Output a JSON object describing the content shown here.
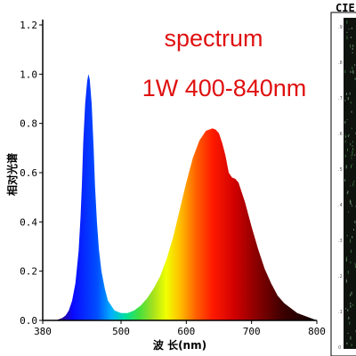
{
  "chart_data": {
    "type": "area",
    "title": "spectrum",
    "subtitle": "1W 400-840nm",
    "xlabel": "波 长(nm)",
    "ylabel": "相对光谱",
    "xlim": [
      380,
      800
    ],
    "ylim": [
      0,
      1.2
    ],
    "x_ticks": [
      "380",
      "500",
      "600",
      "700",
      "800"
    ],
    "y_ticks": [
      "0.0",
      "0.2",
      "0.4",
      "0.6",
      "0.8",
      "1.0",
      "1.2"
    ],
    "series": [
      {
        "x": [
          380,
          400,
          410,
          415,
          420,
          425,
          430,
          435,
          438,
          440,
          442,
          445,
          448,
          450,
          452,
          455,
          458,
          460,
          463,
          466,
          470,
          475,
          480,
          490,
          500,
          510,
          520,
          530,
          540,
          550,
          560,
          570,
          580,
          590,
          600,
          610,
          620,
          630,
          640,
          645,
          650,
          655,
          660,
          665,
          670,
          675,
          680,
          690,
          700,
          710,
          720,
          730,
          740,
          750,
          760,
          770,
          780,
          790,
          800
        ],
        "y": [
          0.0,
          0.0,
          0.01,
          0.02,
          0.04,
          0.08,
          0.15,
          0.28,
          0.42,
          0.55,
          0.72,
          0.88,
          0.97,
          1.0,
          0.98,
          0.88,
          0.7,
          0.55,
          0.4,
          0.29,
          0.2,
          0.13,
          0.08,
          0.04,
          0.03,
          0.03,
          0.04,
          0.06,
          0.09,
          0.13,
          0.18,
          0.25,
          0.34,
          0.45,
          0.56,
          0.66,
          0.73,
          0.77,
          0.78,
          0.775,
          0.76,
          0.72,
          0.67,
          0.6,
          0.58,
          0.575,
          0.56,
          0.48,
          0.38,
          0.29,
          0.21,
          0.15,
          0.1,
          0.07,
          0.05,
          0.03,
          0.02,
          0.01,
          0.0
        ]
      }
    ],
    "grid": false
  },
  "cie_panel": {
    "title": "CIE",
    "ticks": [
      ".9",
      ".8",
      ".7",
      ".6",
      ".5",
      ".4",
      ".3",
      ".2",
      ".1",
      "0"
    ]
  },
  "colors": {
    "title": "#e01010",
    "axis": "#000000",
    "cie_background": "#0e130e"
  }
}
